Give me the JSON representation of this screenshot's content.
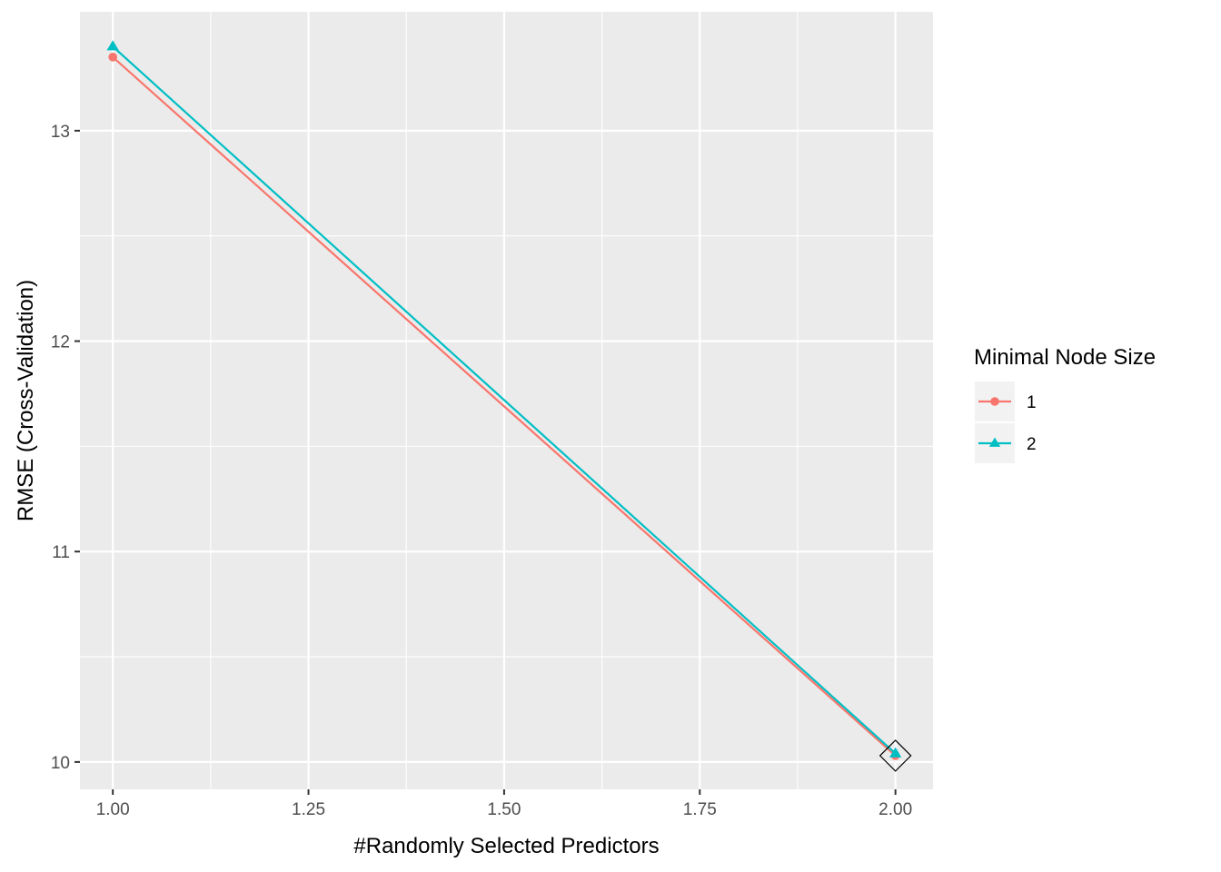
{
  "chart_data": {
    "type": "line",
    "xlabel": "#Randomly Selected Predictors",
    "ylabel": "RMSE (Cross-Validation)",
    "xlim": [
      0.958,
      2.048
    ],
    "ylim": [
      9.87,
      13.565
    ],
    "x_ticks": [
      1.0,
      1.25,
      1.5,
      1.75,
      2.0
    ],
    "x_tick_labels": [
      "1.00",
      "1.25",
      "1.50",
      "1.75",
      "2.00"
    ],
    "y_ticks": [
      10,
      11,
      12,
      13
    ],
    "y_tick_labels": [
      "10",
      "11",
      "12",
      "13"
    ],
    "grid": true,
    "legend": {
      "title": "Minimal Node Size",
      "position": "right"
    },
    "series": [
      {
        "name": "1",
        "color": "#F8766D",
        "marker": "circle",
        "x": [
          1,
          2
        ],
        "y": [
          13.35,
          10.03
        ]
      },
      {
        "name": "2",
        "color": "#00BFC4",
        "marker": "triangle",
        "x": [
          1,
          2
        ],
        "y": [
          13.4,
          10.04
        ]
      }
    ],
    "highlight": {
      "marker": "diamond",
      "x": 2,
      "y": 10.03
    }
  }
}
